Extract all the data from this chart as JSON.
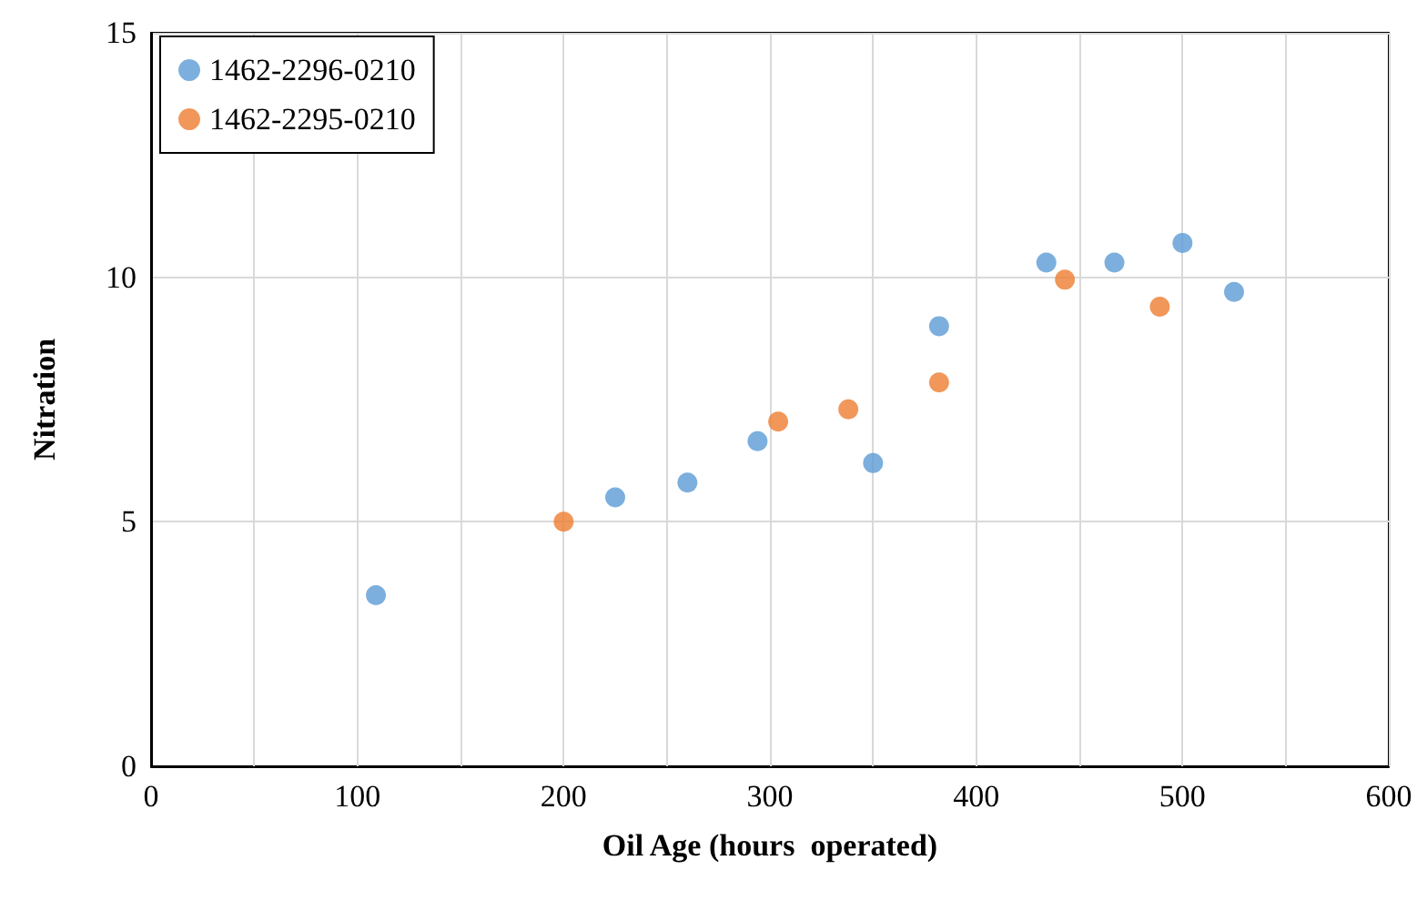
{
  "chart_data": {
    "type": "scatter",
    "xlabel": "Oil Age (hours  operated)",
    "ylabel": "Nitration",
    "series": [
      {
        "name": "1462-2296-0210",
        "color": "#5b9bd5",
        "x": [
          109,
          225,
          260,
          294,
          350,
          382,
          434,
          467,
          500,
          525
        ],
        "values": [
          3.5,
          5.5,
          5.8,
          6.65,
          6.2,
          9.0,
          10.3,
          10.3,
          10.7,
          9.7
        ]
      },
      {
        "name": "1462-2295-0210",
        "color": "#ed7d31",
        "x": [
          200,
          304,
          338,
          382,
          443,
          489
        ],
        "values": [
          5.0,
          7.05,
          7.3,
          7.85,
          9.95,
          9.4
        ]
      }
    ],
    "xlim": [
      0,
      600
    ],
    "ylim": [
      0,
      15
    ],
    "xticks": [
      0,
      {
        "value": 50,
        "label": null
      },
      100,
      {
        "value": 150,
        "label": null
      },
      200,
      {
        "value": 250,
        "label": null
      },
      300,
      {
        "value": 350,
        "label": null
      },
      400,
      {
        "value": 450,
        "label": null
      },
      500,
      {
        "value": 550,
        "label": null
      },
      600
    ],
    "yticks": [
      0,
      5,
      10,
      15
    ],
    "grid": true,
    "legend": "top left",
    "marker": "circle"
  }
}
